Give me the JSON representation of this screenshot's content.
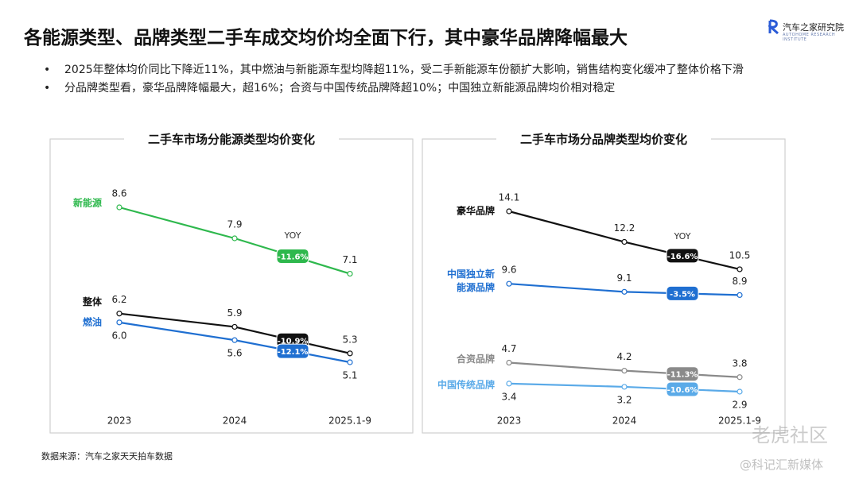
{
  "header": {
    "title": "各能源类型、品牌类型二手车成交均价均全面下行，其中豪华品牌降幅最大",
    "logo": "汽车之家研究院",
    "logo_sub": "AUTOHOME RESEARCH INSTITUTE"
  },
  "bullets": [
    "2025年整体均价同比下降近11%，其中燃油与新能源车型均降超11%，受二手新能源车份额扩大影响，销售结构变化缓冲了整体价格下滑",
    "分品牌类型看，豪华品牌降幅最大，超16%；合资与中国传统品牌降超10%；中国独立新能源品牌均价相对稳定"
  ],
  "source": "数据来源：汽车之家天天拍车数据",
  "watermarks": [
    "老虎社区",
    "@科记汇新媒体"
  ],
  "chart_data": [
    {
      "type": "line",
      "title": "二手车市场分能源类型均价变化",
      "categories": [
        "2023",
        "2024",
        "2025.1-9"
      ],
      "yoy_title": "YOY",
      "series": [
        {
          "name": "新能源",
          "color": "#2eb84d",
          "values": [
            8.6,
            7.9,
            7.1
          ],
          "value_labels": [
            "8.6",
            "7.9",
            "7.1"
          ],
          "yoy": "-11.6%"
        },
        {
          "name": "整体",
          "color": "#111111",
          "values": [
            6.2,
            5.9,
            5.3
          ],
          "value_labels": [
            "6.2",
            "5.9",
            "5.3"
          ],
          "yoy": "-10.9%"
        },
        {
          "name": "燃油",
          "color": "#1f6fd1",
          "values": [
            6,
            5.6,
            5.1
          ],
          "value_labels": [
            "6.0",
            "5.6",
            "5.1"
          ],
          "yoy": "-12.1%"
        }
      ]
    },
    {
      "type": "line",
      "title": "二手车市场分品牌类型均价变化",
      "categories": [
        "2023",
        "2024",
        "2025.1-9"
      ],
      "yoy_title": "YOY",
      "series": [
        {
          "name": "豪华品牌",
          "color": "#111111",
          "values": [
            14.1,
            12.2,
            10.5
          ],
          "value_labels": [
            "14.1",
            "12.2",
            "10.5"
          ],
          "yoy": "-16.6%"
        },
        {
          "name": "中国独立新能源品牌",
          "color": "#1f6fd1",
          "values": [
            9.6,
            9.1,
            8.9
          ],
          "value_labels": [
            "9.6",
            "9.1",
            "8.9"
          ],
          "yoy": "-3.5%"
        },
        {
          "name": "合资品牌",
          "color": "#8a8a8a",
          "values": [
            4.7,
            4.2,
            3.8
          ],
          "value_labels": [
            "4.7",
            "4.2",
            "3.8"
          ],
          "yoy": "-11.3%"
        },
        {
          "name": "中国传统品牌",
          "color": "#5aaae8",
          "values": [
            3.4,
            3.2,
            2.9
          ],
          "value_labels": [
            "3.4",
            "3.2",
            "2.9"
          ],
          "yoy": "-10.6%"
        }
      ]
    }
  ]
}
